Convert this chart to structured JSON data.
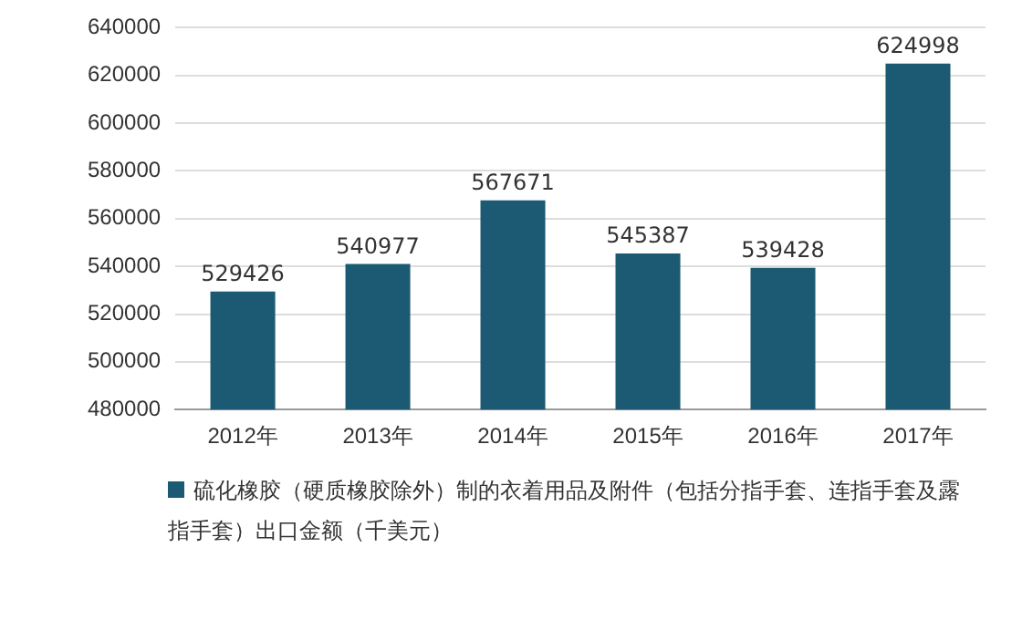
{
  "chart_data": {
    "type": "bar",
    "categories": [
      "2012年",
      "2013年",
      "2014年",
      "2015年",
      "2016年",
      "2017年"
    ],
    "series": [
      {
        "name": "硫化橡胶（硬质橡胶除外）制的衣着用品及附件（包括分指手套、连指手套及露指手套）出口金额（千美元）",
        "color": "#1b5a72",
        "values": [
          529426,
          540977,
          567671,
          545387,
          539428,
          624998
        ]
      }
    ],
    "ylim": [
      480000,
      640000
    ],
    "yticks": [
      480000,
      500000,
      520000,
      540000,
      560000,
      580000,
      600000,
      620000,
      640000
    ],
    "grid": "y",
    "legend": "bottom",
    "data_labels": true
  }
}
